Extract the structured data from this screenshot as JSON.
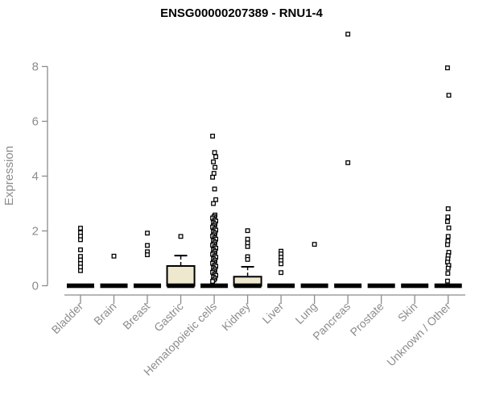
{
  "chart_data": {
    "type": "boxplot",
    "title": "ENSG00000207389 - RNU1-4",
    "ylabel": "Expression",
    "ylim": [
      0,
      8
    ],
    "yticks": [
      0,
      2,
      4,
      6,
      8
    ],
    "grid": false,
    "legend": "none",
    "colors": {
      "box_fill": "#EDE8CE",
      "box_border": "#000000",
      "median": "#000000",
      "outlier": "#000000",
      "axis": "#8C8C8C",
      "labels": "#8C8C8C",
      "title": "#000000",
      "background": "#FFFFFF"
    },
    "categories": [
      "Bladder",
      "Brain",
      "Breast",
      "Gastric",
      "Hematopoietic cells",
      "Kidney",
      "Liver",
      "Lung",
      "Pancreas",
      "Prostate",
      "Skin",
      "Unknown / Other"
    ],
    "boxes": [
      {
        "category": "Bladder",
        "median": 0,
        "q1": 0,
        "q3": 0,
        "whisker_low": 0,
        "whisker_high": 0,
        "outliers": [
          2.1,
          1.94,
          1.81,
          1.68,
          1.31,
          1.07,
          0.94,
          0.81,
          0.68,
          0.55
        ]
      },
      {
        "category": "Brain",
        "median": 0,
        "q1": 0,
        "q3": 0,
        "whisker_low": 0,
        "whisker_high": 0,
        "outliers": [
          1.08
        ]
      },
      {
        "category": "Breast",
        "median": 0,
        "q1": 0,
        "q3": 0,
        "whisker_low": 0,
        "whisker_high": 0,
        "outliers": [
          1.92,
          1.47,
          1.24,
          1.13
        ]
      },
      {
        "category": "Gastric",
        "median": 0,
        "q1": 0,
        "q3": 0.72,
        "whisker_low": 0,
        "whisker_high": 1.1,
        "outliers": [
          1.8
        ]
      },
      {
        "category": "Hematopoietic cells",
        "median": 0,
        "q1": 0,
        "q3": 0,
        "whisker_low": 0,
        "whisker_high": 0,
        "outliers": [
          5.46,
          4.86,
          4.71,
          4.52,
          4.32,
          4.1,
          3.96,
          3.53,
          3.14,
          3.0,
          2.58,
          2.52,
          2.47,
          2.41,
          2.36,
          2.3,
          2.25,
          2.19,
          2.14,
          2.08,
          2.03,
          1.97,
          1.92,
          1.86,
          1.81,
          1.75,
          1.7,
          1.64,
          1.59,
          1.53,
          1.48,
          1.42,
          1.37,
          1.31,
          1.26,
          1.2,
          1.15,
          1.09,
          1.04,
          0.98,
          0.93,
          0.87,
          0.82,
          0.76,
          0.71,
          0.65,
          0.6,
          0.54,
          0.49,
          0.43,
          0.38,
          0.32,
          0.27,
          0.21,
          0.16
        ]
      },
      {
        "category": "Kidney",
        "median": 0,
        "q1": 0,
        "q3": 0.33,
        "whisker_low": 0,
        "whisker_high": 0.69,
        "outliers": [
          2.01,
          1.7,
          1.56,
          1.43,
          1.06,
          0.96
        ]
      },
      {
        "category": "Liver",
        "median": 0,
        "q1": 0,
        "q3": 0,
        "whisker_low": 0,
        "whisker_high": 0,
        "outliers": [
          1.26,
          1.16,
          1.04,
          0.92,
          0.8,
          0.48
        ]
      },
      {
        "category": "Lung",
        "median": 0,
        "q1": 0,
        "q3": 0,
        "whisker_low": 0,
        "whisker_high": 0,
        "outliers": [
          1.51
        ]
      },
      {
        "category": "Pancreas",
        "median": 0,
        "q1": 0,
        "q3": 0,
        "whisker_low": 0,
        "whisker_high": 0,
        "outliers": [
          9.18,
          4.49
        ]
      },
      {
        "category": "Prostate",
        "median": 0,
        "q1": 0,
        "q3": 0,
        "whisker_low": 0,
        "whisker_high": 0,
        "outliers": []
      },
      {
        "category": "Skin",
        "median": 0,
        "q1": 0,
        "q3": 0,
        "whisker_low": 0,
        "whisker_high": 0,
        "outliers": []
      },
      {
        "category": "Unknown / Other",
        "median": 0,
        "q1": 0,
        "q3": 0,
        "whisker_low": 0,
        "whisker_high": 0,
        "outliers": [
          7.95,
          6.95,
          2.81,
          2.51,
          2.34,
          2.11,
          1.8,
          1.63,
          1.5,
          1.22,
          1.1,
          0.98,
          0.86,
          0.74,
          0.64,
          0.45,
          0.17
        ]
      }
    ]
  }
}
